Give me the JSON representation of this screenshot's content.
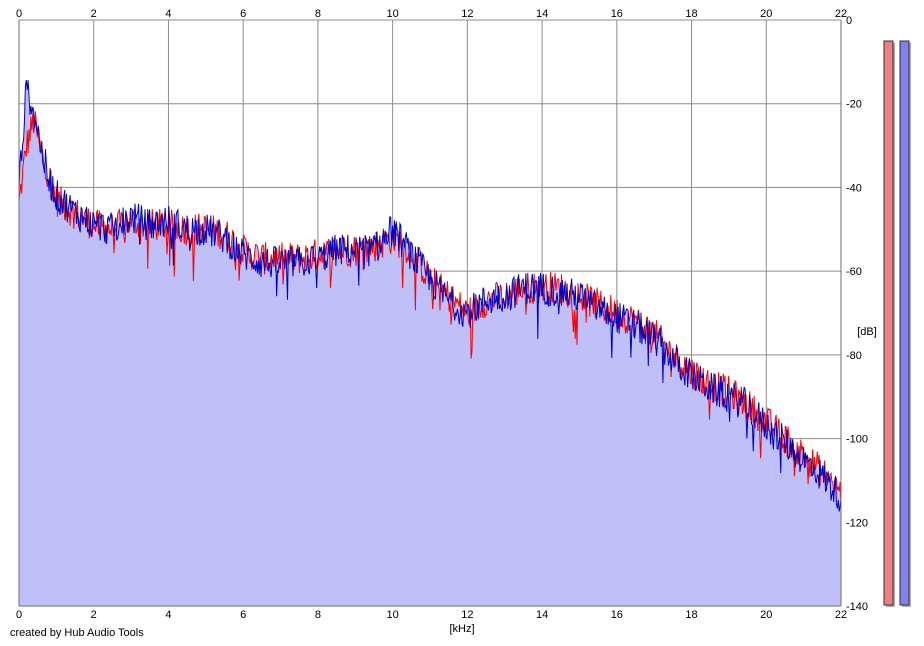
{
  "chart_data": {
    "type": "area",
    "xlabel": "[kHz]",
    "ylabel": "[dB]",
    "xlim": [
      0,
      22
    ],
    "ylim": [
      -140,
      0
    ],
    "x_ticks": [
      "0",
      "2",
      "4",
      "6",
      "8",
      "10",
      "12",
      "14",
      "16",
      "18",
      "20",
      "22"
    ],
    "y_ticks": [
      "0",
      "-20",
      "-40",
      "-60",
      "-80",
      "-100",
      "-120",
      "-140"
    ],
    "grid": true,
    "fill_color": "#c0c0f8",
    "series": [
      {
        "color": "#ff0000",
        "x": [
          0,
          0.2,
          0.4,
          0.6,
          0.8,
          1,
          1.5,
          2,
          2.5,
          3,
          3.5,
          4,
          4.5,
          5,
          5.5,
          6,
          6.5,
          7,
          7.5,
          8,
          8.5,
          9,
          9.5,
          10,
          10.5,
          11,
          11.5,
          12,
          12.5,
          13,
          13.5,
          14,
          14.5,
          15,
          15.5,
          16,
          16.5,
          17,
          17.5,
          18,
          18.5,
          19,
          19.5,
          20,
          20.5,
          21,
          21.5,
          22
        ],
        "y": [
          -44,
          -30,
          -24,
          -32,
          -37,
          -43,
          -46,
          -49,
          -50,
          -48,
          -49,
          -49,
          -50,
          -50,
          -51,
          -55,
          -57,
          -57,
          -57,
          -56,
          -55,
          -55,
          -54,
          -52,
          -55,
          -62,
          -66,
          -70,
          -67,
          -66,
          -64,
          -64,
          -64,
          -66,
          -68,
          -70,
          -72,
          -75,
          -80,
          -84,
          -87,
          -89,
          -92,
          -96,
          -100,
          -104,
          -108,
          -113
        ]
      },
      {
        "color": "#0000c0",
        "x": [
          0,
          0.2,
          0.4,
          0.6,
          0.8,
          1,
          1.5,
          2,
          2.5,
          3,
          3.5,
          4,
          4.5,
          5,
          5.5,
          6,
          6.5,
          7,
          7.5,
          8,
          8.5,
          9,
          9.5,
          10,
          10.5,
          11,
          11.5,
          12,
          12.5,
          13,
          13.5,
          14,
          14.5,
          15,
          15.5,
          16,
          16.5,
          17,
          17.5,
          18,
          18.5,
          19,
          19.5,
          20,
          20.5,
          21,
          21.5,
          22
        ],
        "y": [
          -40,
          -16,
          -22,
          -31,
          -38,
          -42,
          -46,
          -49,
          -50,
          -47,
          -49,
          -48,
          -50,
          -50,
          -52,
          -56,
          -58,
          -58,
          -58,
          -57,
          -55,
          -55,
          -55,
          -50,
          -56,
          -62,
          -67,
          -70,
          -67,
          -66,
          -64,
          -64,
          -65,
          -66,
          -69,
          -71,
          -73,
          -76,
          -81,
          -85,
          -88,
          -90,
          -92,
          -97,
          -101,
          -105,
          -109,
          -114
        ]
      }
    ],
    "level_meters": [
      {
        "color": "#f08080",
        "level": 1.0
      },
      {
        "color": "#8080f0",
        "level": 1.0
      }
    ],
    "footer": "created by Hub Audio Tools"
  }
}
